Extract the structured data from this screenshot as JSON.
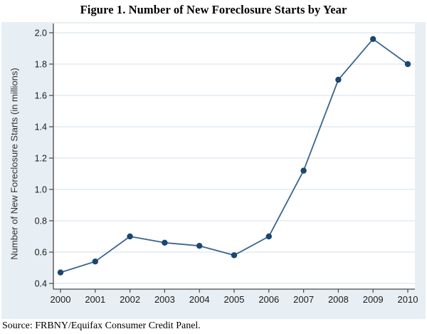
{
  "source_note": "Source: FRBNY/Equifax Consumer Credit Panel.",
  "chart_data": {
    "type": "line",
    "title": "Figure 1. Number of New Foreclosure Starts by Year",
    "categories": [
      "2000",
      "2001",
      "2002",
      "2003",
      "2004",
      "2005",
      "2006",
      "2007",
      "2008",
      "2009",
      "2010"
    ],
    "values": [
      0.47,
      0.54,
      0.7,
      0.66,
      0.64,
      0.58,
      0.7,
      1.12,
      1.7,
      1.96,
      1.8
    ],
    "xlabel": "",
    "ylabel": "Number of New Foreclosure Starts (in millions)",
    "ylim": [
      0.4,
      2.0
    ],
    "ytick_step": 0.2,
    "grid": true,
    "legend": "none",
    "colors": {
      "line": "#39648f",
      "marker": "#1a476f",
      "graph_background": "#e8eff4",
      "plot_background": "#ffffff",
      "gridline": "#e2ecf2",
      "axis": "#474747",
      "tick_label": "#1a1a1a"
    }
  }
}
